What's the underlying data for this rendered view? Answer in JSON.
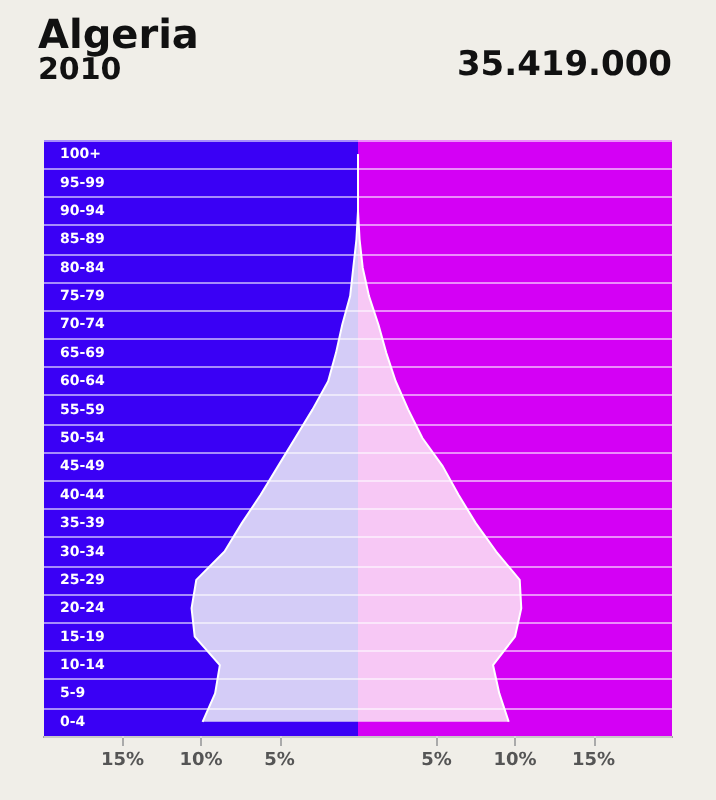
{
  "chart_data": {
    "type": "area",
    "orientation": "horizontal",
    "title": "Algeria",
    "subtitle": "2010",
    "annotations": [
      "35.419.000"
    ],
    "categories": [
      "100+",
      "95-99",
      "90-94",
      "85-89",
      "80-84",
      "75-79",
      "70-74",
      "65-69",
      "60-64",
      "55-59",
      "50-54",
      "45-49",
      "40-44",
      "35-39",
      "30-34",
      "25-29",
      "20-24",
      "15-19",
      "10-14",
      "5-9",
      "0-4"
    ],
    "series": [
      {
        "color": "#d4ccf7",
        "values": [
          0,
          0,
          0,
          -0.1,
          -0.3,
          -0.5,
          -1.0,
          -1.4,
          -1.9,
          -2.9,
          -4.0,
          -5.1,
          -6.2,
          -7.4,
          -8.5,
          -10.3,
          -10.6,
          -10.4,
          -8.8,
          -9.1,
          -9.9
        ]
      },
      {
        "color": "#f7c8f5",
        "values": [
          0,
          0,
          0,
          0.1,
          0.3,
          0.7,
          1.3,
          1.8,
          2.4,
          3.2,
          4.1,
          5.4,
          6.4,
          7.5,
          8.8,
          10.3,
          10.4,
          10.0,
          8.6,
          9.0,
          9.6
        ]
      }
    ],
    "xlim": [
      -20,
      20
    ],
    "xticks": [
      {
        "value": -15,
        "label": "15%"
      },
      {
        "value": -10,
        "label": "10%"
      },
      {
        "value": -5,
        "label": "5%"
      },
      {
        "value": 5,
        "label": "5%"
      },
      {
        "value": 10,
        "label": "10%"
      },
      {
        "value": 15,
        "label": "15%"
      }
    ],
    "bands": [
      {
        "axis": "x",
        "from": -20,
        "to": 0,
        "color": "#3a00f5"
      },
      {
        "axis": "x",
        "from": 0,
        "to": 20,
        "color": "#d400f5"
      }
    ],
    "grid": "y",
    "marker": "none"
  }
}
